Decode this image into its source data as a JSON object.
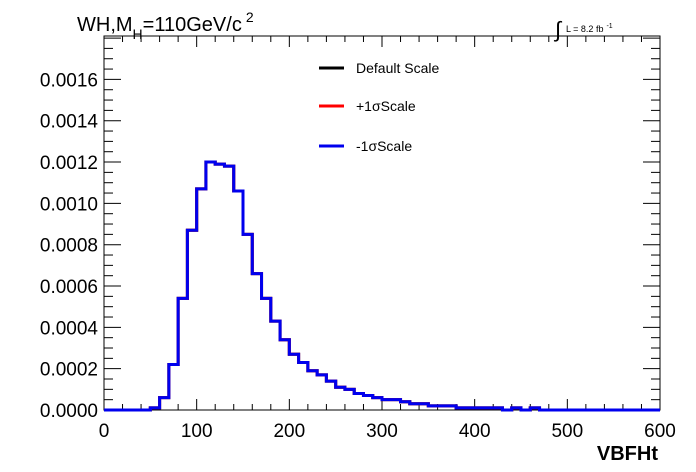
{
  "chart_data": {
    "type": "line",
    "title": {
      "prefix": "WH,M",
      "subscript": "H",
      "suffix": "=110GeV/c",
      "superscript": "2"
    },
    "luminosity": {
      "integral_sign": "∫",
      "text": "L = 8.2 fb",
      "superscript": "-1"
    },
    "xlabel": "VBFHt",
    "ylabel": "",
    "xlim": [
      0,
      600
    ],
    "ylim": [
      0,
      0.00181
    ],
    "x_ticks": [
      "0",
      "100",
      "200",
      "300",
      "400",
      "500",
      "600"
    ],
    "y_ticks": [
      "0.0000",
      "0.0002",
      "0.0004",
      "0.0006",
      "0.0008",
      "0.0010",
      "0.0012",
      "0.0014",
      "0.0016"
    ],
    "grid": false,
    "legend_position": "top-center",
    "bin_width": 10,
    "series": [
      {
        "name": "Default Scale",
        "color": "#000000",
        "values": [
          0.0,
          0.0,
          0.0,
          0.0,
          0.0,
          1e-05,
          6e-05,
          0.00022,
          0.00054,
          0.00087,
          0.00107,
          0.0012,
          0.00119,
          0.00118,
          0.00106,
          0.00085,
          0.00066,
          0.00054,
          0.00043,
          0.00034,
          0.00027,
          0.00023,
          0.00019,
          0.00017,
          0.00014,
          0.00011,
          0.0001,
          8e-05,
          7e-05,
          6e-05,
          5e-05,
          5e-05,
          4e-05,
          3e-05,
          3e-05,
          2e-05,
          2e-05,
          2e-05,
          1e-05,
          1e-05,
          1e-05,
          1e-05,
          1e-05,
          0.0,
          1e-05,
          0.0,
          1e-05,
          0.0,
          0.0,
          0.0,
          0.0,
          0.0,
          0.0,
          0.0,
          0.0,
          0.0,
          0.0,
          0.0,
          0.0,
          0.0
        ]
      },
      {
        "name": "+1σScale",
        "color": "#ff0000",
        "values": [
          0.0,
          0.0,
          0.0,
          0.0,
          0.0,
          1e-05,
          6e-05,
          0.00022,
          0.00054,
          0.00087,
          0.00107,
          0.0012,
          0.00119,
          0.00118,
          0.00106,
          0.00085,
          0.00066,
          0.00054,
          0.00043,
          0.00034,
          0.00027,
          0.00023,
          0.00019,
          0.00017,
          0.00014,
          0.00011,
          0.0001,
          8e-05,
          7e-05,
          6e-05,
          5e-05,
          5e-05,
          4e-05,
          3e-05,
          3e-05,
          2e-05,
          2e-05,
          2e-05,
          1e-05,
          1e-05,
          1e-05,
          1e-05,
          1e-05,
          0.0,
          1e-05,
          0.0,
          1e-05,
          0.0,
          0.0,
          0.0,
          0.0,
          0.0,
          0.0,
          0.0,
          0.0,
          0.0,
          0.0,
          0.0,
          0.0,
          0.0
        ]
      },
      {
        "name": "-1σScale",
        "color": "#0000ee",
        "values": [
          0.0,
          0.0,
          0.0,
          0.0,
          0.0,
          1e-05,
          6e-05,
          0.00022,
          0.00054,
          0.00087,
          0.00107,
          0.0012,
          0.00119,
          0.00118,
          0.00106,
          0.00085,
          0.00066,
          0.00054,
          0.00043,
          0.00034,
          0.00027,
          0.00023,
          0.00019,
          0.00017,
          0.00014,
          0.00011,
          0.0001,
          8e-05,
          7e-05,
          6e-05,
          5e-05,
          5e-05,
          4e-05,
          3e-05,
          3e-05,
          2e-05,
          2e-05,
          2e-05,
          1e-05,
          1e-05,
          1e-05,
          1e-05,
          1e-05,
          0.0,
          1e-05,
          0.0,
          1e-05,
          0.0,
          0.0,
          0.0,
          0.0,
          0.0,
          0.0,
          0.0,
          0.0,
          0.0,
          0.0,
          0.0,
          0.0,
          0.0
        ]
      }
    ]
  }
}
